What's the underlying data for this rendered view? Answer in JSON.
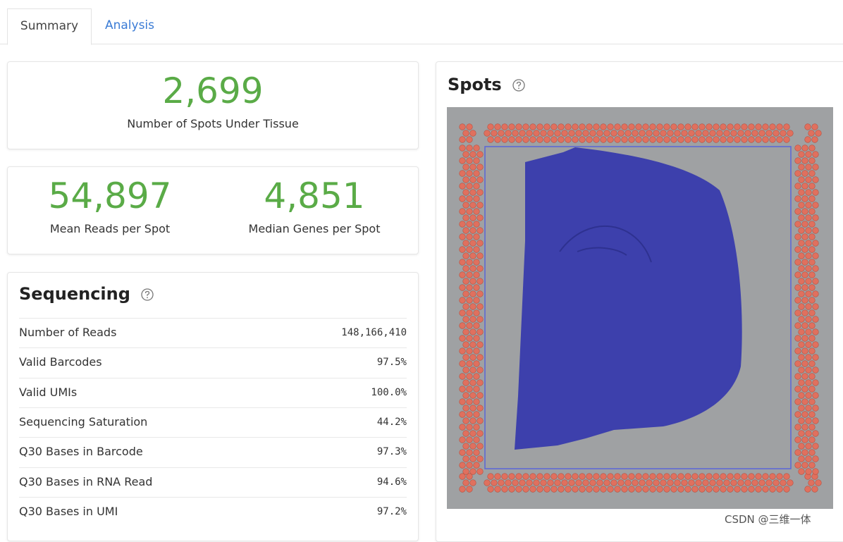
{
  "tabs": [
    "Summary",
    "Analysis"
  ],
  "spots_card": {
    "value": "2,699",
    "label": "Number of Spots Under Tissue"
  },
  "reads_card": [
    {
      "value": "54,897",
      "label": "Mean Reads per Spot"
    },
    {
      "value": "4,851",
      "label": "Median Genes per Spot"
    }
  ],
  "sequencing": {
    "title": "Sequencing",
    "rows": [
      [
        "Number of Reads",
        "148,166,410"
      ],
      [
        "Valid Barcodes",
        "97.5%"
      ],
      [
        "Valid UMIs",
        "100.0%"
      ],
      [
        "Sequencing Saturation",
        "44.2%"
      ],
      [
        "Q30 Bases in Barcode",
        "97.3%"
      ],
      [
        "Q30 Bases in RNA Read",
        "94.6%"
      ],
      [
        "Q30 Bases in UMI",
        "97.2%"
      ]
    ]
  },
  "spots": {
    "title": "Spots"
  },
  "watermark": "CSDN @三维一体"
}
